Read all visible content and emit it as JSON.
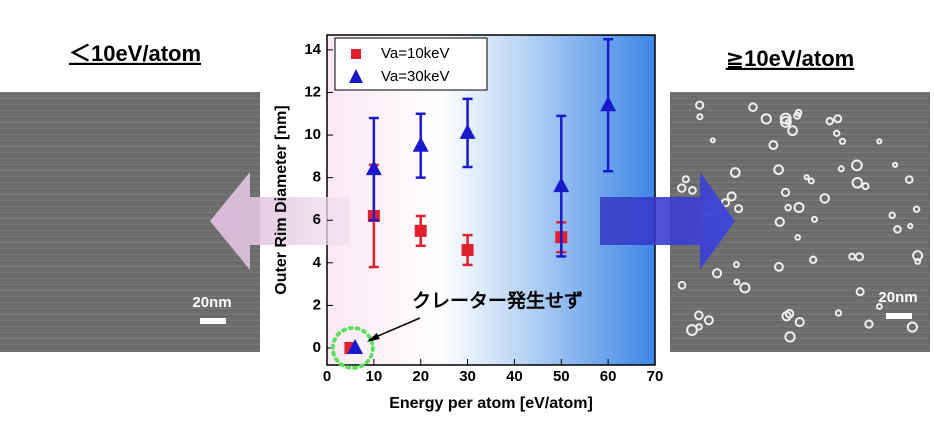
{
  "chart_data": {
    "type": "scatter",
    "x_label": "Energy per atom [eV/atom]",
    "y_label": "Outer Rim Diameter [nm]",
    "xlim": [
      0,
      70
    ],
    "xticks": [
      0,
      10,
      20,
      30,
      40,
      50,
      60,
      70
    ],
    "ylim": [
      -0.8,
      14.7
    ],
    "yticks": [
      0,
      2,
      4,
      6,
      8,
      10,
      12,
      14
    ],
    "legend": "upper left",
    "series": [
      {
        "name": "Va=10keV",
        "color": "#e0202a",
        "marker": "square",
        "x": [
          5,
          10,
          20,
          30,
          50
        ],
        "values": [
          0,
          6.2,
          5.5,
          4.6,
          5.2
        ],
        "errors": [
          0,
          2.4,
          0.7,
          0.7,
          0.7
        ]
      },
      {
        "name": "Va=30keV",
        "color": "#1a1acc",
        "marker": "triangle",
        "x": [
          6,
          10,
          20,
          30,
          50,
          60
        ],
        "values": [
          0,
          8.4,
          9.5,
          10.1,
          7.6,
          11.4
        ],
        "errors": [
          0,
          2.4,
          1.5,
          1.6,
          3.3,
          3.1
        ]
      }
    ],
    "annotation": "クレーター発生せず"
  },
  "panels": [
    {
      "heading": "＜10eV/atom",
      "scale_label": "20nm"
    },
    {
      "heading": "≧10eV/atom",
      "scale_label": "20nm"
    }
  ]
}
